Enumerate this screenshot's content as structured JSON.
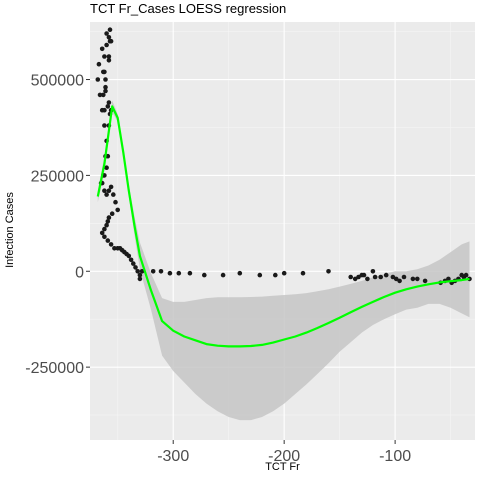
{
  "chart_data": {
    "type": "scatter",
    "title": "TCT Fr_Cases LOESS regression",
    "xlabel": "TCT Fr",
    "ylabel": "Infection Cases",
    "xlim": [
      -375,
      -28
    ],
    "ylim": [
      -440000,
      650000
    ],
    "x_ticks": [
      -300,
      -200,
      -100
    ],
    "x_tick_labels": [
      "-300",
      "-200",
      "-100"
    ],
    "y_ticks": [
      500000,
      250000,
      0,
      -250000
    ],
    "y_tick_labels": [
      "500000",
      "250000",
      "0",
      "-250000"
    ],
    "grid": true,
    "colors": {
      "panel": "#ebebeb",
      "grid_major": "#ffffff",
      "points": "#1a1a1a",
      "loess": "#00ff00",
      "band": "#c6c6c6"
    },
    "series": [
      {
        "kind": "points",
        "x": [
          -365,
          -363,
          -361,
          -358,
          -362,
          -366,
          -368,
          -367,
          -364,
          -360,
          -357,
          -356,
          -358,
          -362,
          -361,
          -358,
          -356,
          -357,
          -359,
          -361,
          -363,
          -362,
          -360,
          -358,
          -357,
          -358,
          -361,
          -363,
          -364,
          -362,
          -360,
          -359,
          -360,
          -362,
          -364,
          -362,
          -360,
          -358,
          -356,
          -354,
          -352,
          -350,
          -355,
          -358,
          -359,
          -360,
          -362,
          -364,
          -362,
          -359,
          -356,
          -353,
          -350,
          -348,
          -346,
          -344,
          -342,
          -340,
          -338,
          -336,
          -334,
          -332,
          -330,
          -330,
          -328,
          -318,
          -311,
          -303,
          -295,
          -285,
          -272,
          -255,
          -240,
          -222,
          -208,
          -200,
          -183,
          -160,
          -140,
          -136,
          -133,
          -130,
          -128,
          -125,
          -120,
          -118,
          -113,
          -108,
          -102,
          -99,
          -96,
          -92,
          -84,
          -80,
          -73,
          -59,
          -55,
          -52,
          -49,
          -46,
          -43,
          -40,
          -38,
          -36,
          -33
        ],
        "y": [
          230000,
          250000,
          300000,
          380000,
          420000,
          460000,
          500000,
          540000,
          580000,
          620000,
          630000,
          600000,
          550000,
          520000,
          480000,
          440000,
          420000,
          410000,
          430000,
          470000,
          520000,
          560000,
          590000,
          610000,
          600000,
          560000,
          500000,
          460000,
          420000,
          380000,
          340000,
          300000,
          270000,
          250000,
          230000,
          210000,
          200000,
          210000,
          220000,
          200000,
          180000,
          160000,
          150000,
          140000,
          130000,
          120000,
          110000,
          100000,
          90000,
          80000,
          70000,
          60000,
          60000,
          60000,
          55000,
          50000,
          45000,
          40000,
          30000,
          20000,
          10000,
          0,
          -10000,
          -20000,
          0,
          0,
          0,
          -5000,
          -5000,
          -5000,
          -10000,
          -10000,
          -5000,
          -10000,
          -10000,
          -5000,
          -5000,
          0,
          -15000,
          -20000,
          -15000,
          -10000,
          -10000,
          -20000,
          0,
          -15000,
          -15000,
          -10000,
          -15000,
          -20000,
          -25000,
          -15000,
          -20000,
          -20000,
          -25000,
          -30000,
          -25000,
          -20000,
          -30000,
          -25000,
          -20000,
          -10000,
          -15000,
          -10000,
          -20000
        ]
      },
      {
        "kind": "loess",
        "x": [
          -368,
          -362,
          -355,
          -350,
          -345,
          -340,
          -335,
          -330,
          -320,
          -310,
          -300,
          -290,
          -280,
          -270,
          -260,
          -250,
          -240,
          -230,
          -220,
          -210,
          -200,
          -190,
          -180,
          -170,
          -160,
          -150,
          -140,
          -130,
          -120,
          -110,
          -100,
          -90,
          -80,
          -70,
          -60,
          -50,
          -40,
          -33
        ],
        "y": [
          195000,
          280000,
          430000,
          400000,
          310000,
          210000,
          120000,
          40000,
          -50000,
          -130000,
          -155000,
          -170000,
          -180000,
          -190000,
          -194000,
          -196000,
          -196000,
          -195000,
          -192000,
          -186000,
          -178000,
          -170000,
          -160000,
          -148000,
          -135000,
          -121000,
          -107000,
          -93000,
          -80000,
          -67000,
          -56000,
          -47000,
          -40000,
          -34000,
          -29000,
          -26000,
          -23000,
          -20000
        ]
      },
      {
        "kind": "confidence_band",
        "x": [
          -368,
          -362,
          -355,
          -350,
          -345,
          -340,
          -335,
          -330,
          -320,
          -310,
          -300,
          -290,
          -280,
          -270,
          -260,
          -250,
          -240,
          -230,
          -220,
          -210,
          -200,
          -190,
          -180,
          -170,
          -160,
          -150,
          -140,
          -130,
          -120,
          -110,
          -100,
          -90,
          -80,
          -70,
          -60,
          -50,
          -40,
          -33
        ],
        "y_upper": [
          210000,
          300000,
          445000,
          410000,
          325000,
          225000,
          145000,
          75000,
          -5000,
          -70000,
          -80000,
          -80000,
          -75000,
          -70000,
          -68000,
          -68000,
          -68000,
          -67000,
          -66000,
          -64000,
          -62000,
          -60000,
          -57000,
          -52000,
          -47000,
          -40000,
          -33000,
          -25000,
          -16000,
          -7000,
          0,
          0,
          5000,
          15000,
          30000,
          50000,
          70000,
          78000
        ],
        "y_lower": [
          180000,
          260000,
          415000,
          390000,
          295000,
          195000,
          95000,
          5000,
          -100000,
          -220000,
          -260000,
          -290000,
          -320000,
          -345000,
          -365000,
          -380000,
          -388000,
          -388000,
          -380000,
          -365000,
          -345000,
          -320000,
          -295000,
          -268000,
          -240000,
          -210000,
          -185000,
          -160000,
          -140000,
          -125000,
          -112000,
          -100000,
          -95000,
          -85000,
          -85000,
          -95000,
          -110000,
          -120000
        ]
      }
    ]
  }
}
